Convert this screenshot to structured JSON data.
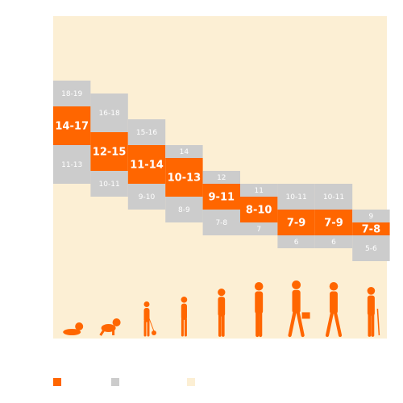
{
  "chart_data": {
    "type": "bar",
    "title": "",
    "xlabel": "",
    "ylabel": "",
    "categories": [
      "",
      "",
      "",
      "",
      "",
      "",
      "",
      "",
      ""
    ],
    "icons": [
      "newborn-icon",
      "infant-icon",
      "toddler-icon",
      "preschooler-icon",
      "school-child-icon",
      "teenager-icon",
      "young-adult-icon",
      "adult-icon",
      "older-adult-icon"
    ],
    "series": [
      {
        "role": "recommended",
        "labels": [
          "14-17",
          "12-15",
          "11-14",
          "10-13",
          "9-11",
          "8-10",
          "7-9",
          "7-9",
          "7-8"
        ],
        "ranges": [
          [
            14,
            17
          ],
          [
            12,
            15
          ],
          [
            11,
            14
          ],
          [
            10,
            13
          ],
          [
            9,
            11
          ],
          [
            8,
            10
          ],
          [
            7,
            9
          ],
          [
            7,
            9
          ],
          [
            7,
            8
          ]
        ]
      },
      {
        "role": "may-be-appropriate-upper",
        "labels": [
          "18-19",
          "16-18",
          "15-16",
          "14",
          "12",
          "11",
          "10-11",
          "10-11",
          "9"
        ],
        "ranges": [
          [
            17,
            19
          ],
          [
            15,
            18
          ],
          [
            14,
            16
          ],
          [
            13,
            14
          ],
          [
            11,
            12
          ],
          [
            10,
            11
          ],
          [
            9,
            11
          ],
          [
            9,
            11
          ],
          [
            8,
            9
          ]
        ]
      },
      {
        "role": "may-be-appropriate-lower",
        "labels": [
          "11-13",
          "10-11",
          "9-10",
          "8-9",
          "7-8",
          "7",
          "6",
          "6",
          "5-6"
        ],
        "ranges": [
          [
            11,
            14
          ],
          [
            10,
            12
          ],
          [
            9,
            11
          ],
          [
            8,
            10
          ],
          [
            7,
            9
          ],
          [
            7,
            8
          ],
          [
            6,
            7
          ],
          [
            6,
            7
          ],
          [
            5,
            7
          ]
        ]
      }
    ],
    "legend": {
      "placement": "bottom-left",
      "entries": [
        {
          "label": "",
          "color": "#ff6600"
        },
        {
          "label": "",
          "color": "#cccccc"
        },
        {
          "label": "",
          "color": "#fcefd4"
        }
      ]
    },
    "grid": false,
    "colors": {
      "recommended": "#ff6600",
      "may_be_appropriate": "#cccccc",
      "background": "#fcefd4",
      "figure": "#ff6600"
    }
  }
}
